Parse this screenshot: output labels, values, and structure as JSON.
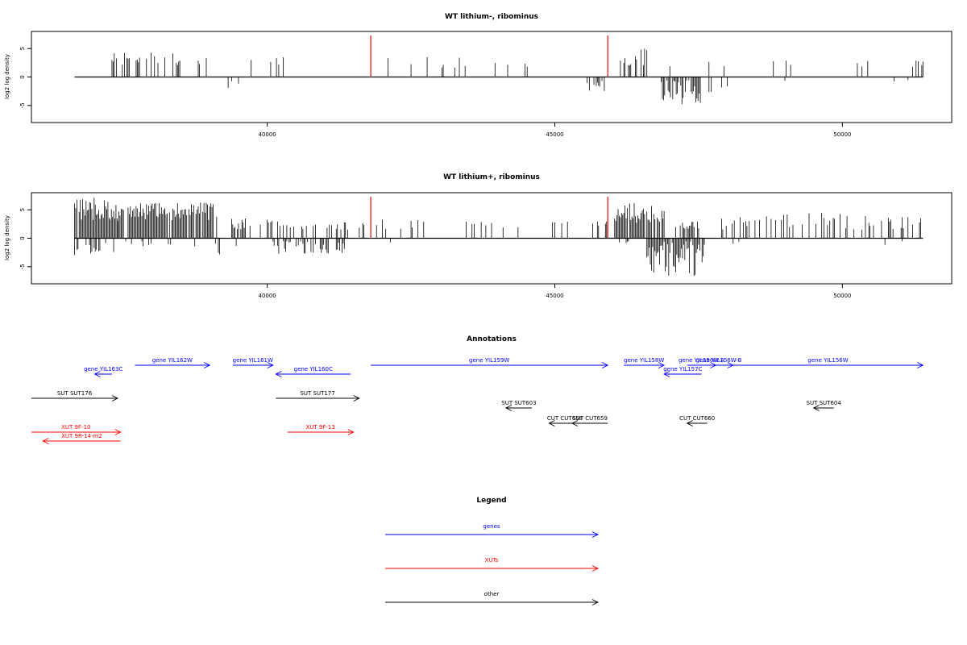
{
  "colors": {
    "gene": "#0000ff",
    "xut": "#ff0000",
    "other": "#000000",
    "marker": "#ff0000",
    "bars": "#000000"
  },
  "chart_data": [
    {
      "type": "bar",
      "title": "WT lithium-, ribominus",
      "ylabel": "log2 log density",
      "xlim": [
        35900,
        51900
      ],
      "ylim": [
        -8,
        8
      ],
      "xticks": [
        40000,
        45000,
        50000
      ],
      "yticks": [
        -5,
        0,
        5
      ],
      "x_range": [
        36650,
        51400
      ],
      "markers": [
        41800,
        45920
      ],
      "marker_height": 7.3,
      "segments": [
        [
          36650,
          37000,
          0.1,
          1.0,
          2.5,
          0.0,
          0.0
        ],
        [
          37300,
          38400,
          0.35,
          2.0,
          4.5,
          0.0,
          0.0
        ],
        [
          38400,
          39050,
          0.25,
          1.5,
          3.5,
          0.0,
          0.0
        ],
        [
          39300,
          39500,
          0.0,
          0.0,
          0.0,
          0.15,
          2.0
        ],
        [
          39500,
          40500,
          0.06,
          1.5,
          3.5,
          0.0,
          0.0
        ],
        [
          40600,
          41500,
          0.03,
          1.0,
          2.5,
          0.0,
          0.0
        ],
        [
          41800,
          43500,
          0.1,
          1.5,
          3.5,
          0.0,
          0.0
        ],
        [
          43800,
          45300,
          0.03,
          1.0,
          2.5,
          0.0,
          0.0
        ],
        [
          45500,
          45900,
          0.08,
          1.5,
          3.0,
          0.3,
          2.5
        ],
        [
          46100,
          46600,
          0.45,
          2.0,
          5.0,
          0.0,
          0.0
        ],
        [
          46600,
          47000,
          0.15,
          1.0,
          2.0,
          0.0,
          0.0
        ],
        [
          46850,
          47600,
          0.0,
          0.0,
          0.0,
          0.7,
          5.0
        ],
        [
          47600,
          48000,
          0.12,
          1.5,
          3.0,
          0.1,
          3.0
        ],
        [
          48000,
          51400,
          0.05,
          1.5,
          3.0,
          0.01,
          1.0
        ]
      ]
    },
    {
      "type": "bar",
      "title": "WT lithium+, ribominus",
      "ylabel": "log2 log density",
      "xlim": [
        35900,
        51900
      ],
      "ylim": [
        -8,
        8
      ],
      "xticks": [
        40000,
        45000,
        50000
      ],
      "yticks": [
        -5,
        0,
        5
      ],
      "x_range": [
        36650,
        51400
      ],
      "markers": [
        41800,
        45920
      ],
      "marker_height": 7.3,
      "segments": [
        [
          36650,
          37400,
          0.95,
          3.0,
          7.2,
          0.4,
          3.0
        ],
        [
          37400,
          39150,
          0.9,
          3.0,
          6.3,
          0.1,
          1.5
        ],
        [
          39150,
          39300,
          0.0,
          0.0,
          0.0,
          0.3,
          3.0
        ],
        [
          39300,
          40100,
          0.4,
          1.5,
          3.5,
          0.05,
          1.5
        ],
        [
          40100,
          41400,
          0.3,
          1.5,
          3.0,
          0.4,
          2.8
        ],
        [
          41500,
          42800,
          0.15,
          1.5,
          3.5,
          0.02,
          1.0
        ],
        [
          43000,
          45000,
          0.12,
          1.5,
          3.0,
          0.0,
          0.0
        ],
        [
          45000,
          45900,
          0.15,
          1.5,
          3.0,
          0.0,
          0.0
        ],
        [
          46000,
          46900,
          0.85,
          2.5,
          6.2,
          0.05,
          1.0
        ],
        [
          46600,
          47600,
          0.0,
          0.0,
          0.0,
          0.9,
          7.0
        ],
        [
          47100,
          47500,
          0.6,
          1.5,
          3.0,
          0.0,
          0.0
        ],
        [
          47600,
          48600,
          0.25,
          1.5,
          4.0,
          0.02,
          1.0
        ],
        [
          48600,
          51400,
          0.25,
          1.5,
          4.5,
          0.02,
          2.5
        ]
      ]
    }
  ],
  "annotations": {
    "title": "Annotations",
    "xlim": [
      35900,
      51900
    ],
    "features": [
      {
        "label": "gene YIL162W",
        "start": 37700,
        "end": 39000,
        "strand": "+",
        "kind": "gene",
        "row": 1
      },
      {
        "label": "gene YIL163C",
        "start": 37000,
        "end": 37300,
        "strand": "-",
        "kind": "gene",
        "row": 0
      },
      {
        "label": "gene YIL161W",
        "start": 39400,
        "end": 40100,
        "strand": "+",
        "kind": "gene",
        "row": 1
      },
      {
        "label": "gene YIL160C",
        "start": 40150,
        "end": 41450,
        "strand": "-",
        "kind": "gene",
        "row": 0
      },
      {
        "label": "gene YIL159W",
        "start": 41800,
        "end": 45920,
        "strand": "+",
        "kind": "gene",
        "row": 1
      },
      {
        "label": "gene YIL158W",
        "start": 46200,
        "end": 46900,
        "strand": "+",
        "kind": "gene",
        "row": 1
      },
      {
        "label": "gene YIL157C",
        "start": 46900,
        "end": 47550,
        "strand": "-",
        "kind": "gene",
        "row": 0
      },
      {
        "label": "gene YIL156W-A",
        "start": 47300,
        "end": 47800,
        "strand": "+",
        "kind": "gene",
        "row": 1
      },
      {
        "label": "gene YIL156W-B",
        "start": 47600,
        "end": 48100,
        "strand": "+",
        "kind": "gene",
        "row": 1
      },
      {
        "label": "gene YIL156W",
        "start": 48100,
        "end": 51400,
        "strand": "+",
        "kind": "gene",
        "row": 1
      },
      {
        "label": "SUT SUT176",
        "start": 35900,
        "end": 37400,
        "strand": "+",
        "kind": "other",
        "row": 2
      },
      {
        "label": "SUT SUT177",
        "start": 40150,
        "end": 41600,
        "strand": "+",
        "kind": "other",
        "row": 2
      },
      {
        "label": "SUT SUT603",
        "start": 44150,
        "end": 44600,
        "strand": "-",
        "kind": "other",
        "row": 3
      },
      {
        "label": "SUT SUT604",
        "start": 49500,
        "end": 49850,
        "strand": "-",
        "kind": "other",
        "row": 3
      },
      {
        "label": "CUT CUT658",
        "start": 44900,
        "end": 45450,
        "strand": "-",
        "kind": "other",
        "row": 4
      },
      {
        "label": "SUT CUT659",
        "start": 45300,
        "end": 45920,
        "strand": "-",
        "kind": "other",
        "row": 4
      },
      {
        "label": "CUT CUT660",
        "start": 47300,
        "end": 47650,
        "strand": "-",
        "kind": "other",
        "row": 4
      },
      {
        "label": "XUT 9F-10",
        "start": 35900,
        "end": 37450,
        "strand": "+",
        "kind": "xut",
        "row": 5
      },
      {
        "label": "XUT 9R-14-m2",
        "start": 36100,
        "end": 37450,
        "strand": "-",
        "kind": "xut",
        "row": 6
      },
      {
        "label": "XUT 9F-13",
        "start": 40350,
        "end": 41500,
        "strand": "+",
        "kind": "xut",
        "row": 5
      }
    ]
  },
  "legend": {
    "title": "Legend",
    "items": [
      {
        "label": "genes",
        "kind": "gene"
      },
      {
        "label": "XUTs",
        "kind": "xut"
      },
      {
        "label": "other",
        "kind": "other"
      }
    ]
  }
}
